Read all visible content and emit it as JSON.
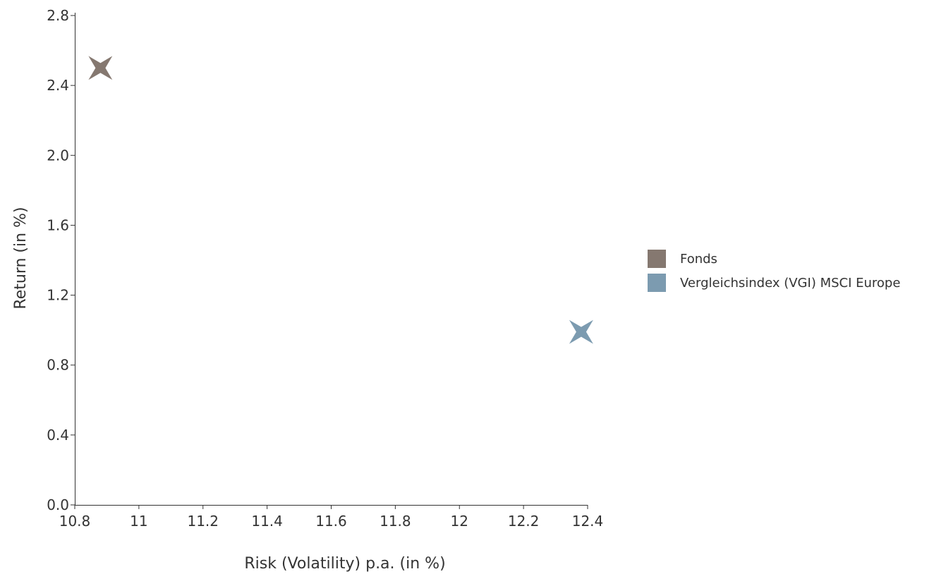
{
  "chart_data": {
    "type": "scatter",
    "xlabel": "Risk (Volatility) p.a. (in %)",
    "ylabel": "Return (in %)",
    "xlim": [
      10.8,
      12.4
    ],
    "ylim": [
      0.0,
      2.8
    ],
    "xticks": [
      10.8,
      11,
      11.2,
      11.4,
      11.6,
      11.8,
      12,
      12.2,
      12.4
    ],
    "xtick_labels": [
      "10.8",
      "11",
      "11.2",
      "11.4",
      "11.6",
      "11.8",
      "12",
      "12.2",
      "12.4"
    ],
    "yticks": [
      0.0,
      0.4,
      0.8,
      1.2,
      1.6,
      2.0,
      2.4,
      2.8
    ],
    "ytick_labels": [
      "0.0",
      "0.4",
      "0.8",
      "1.2",
      "1.6",
      "2.0",
      "2.4",
      "2.8"
    ],
    "grid": false,
    "legend_position": "right",
    "marker": "four-pointed-star",
    "series": [
      {
        "name": "Fonds",
        "color": "#857870",
        "x": [
          10.88
        ],
        "y": [
          2.5
        ]
      },
      {
        "name": "Vergleichsindex (VGI) MSCI Europe",
        "color": "#7c9bb0",
        "x": [
          12.38
        ],
        "y": [
          0.99
        ]
      }
    ]
  }
}
